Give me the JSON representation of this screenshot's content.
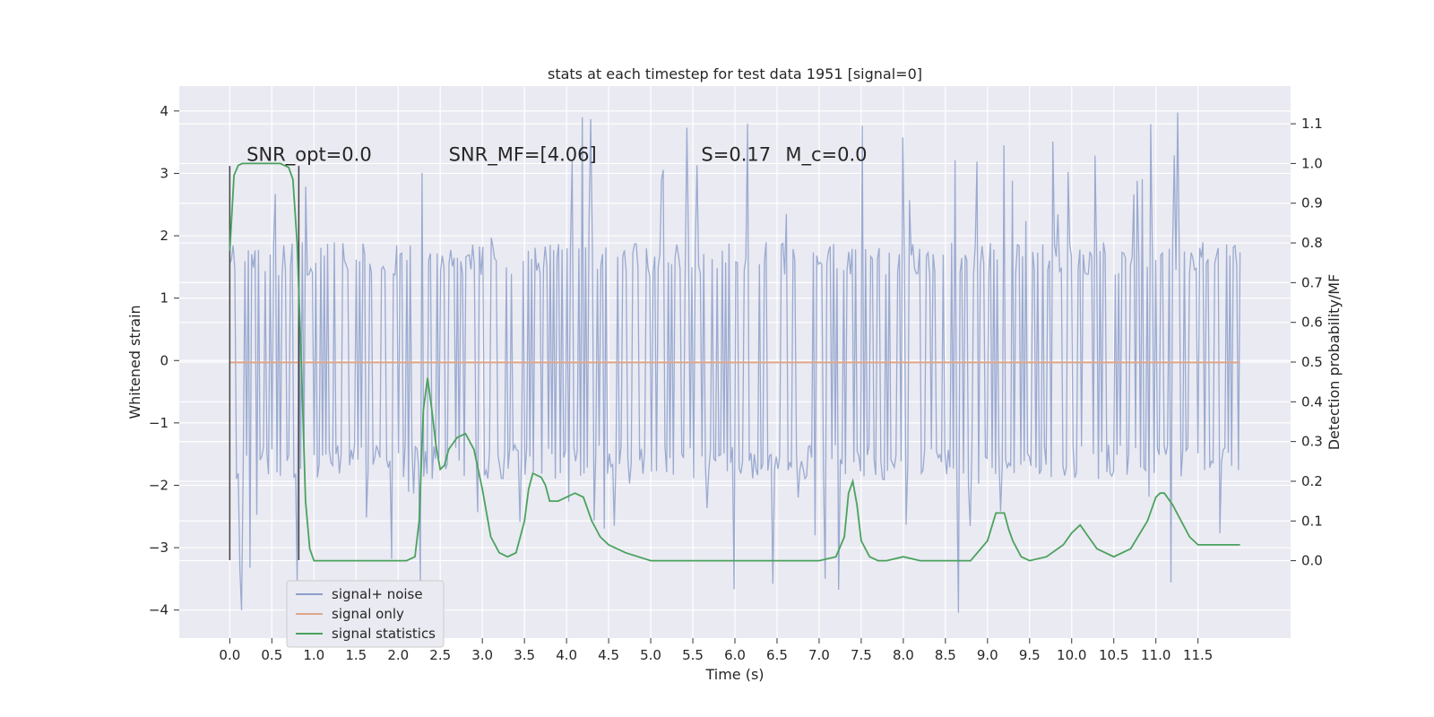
{
  "chart_data": {
    "type": "line",
    "title": "stats at each timestep for test data 1951 [signal=0]",
    "xlabel": "Time (s)",
    "ylabel_left": "Whitened strain",
    "ylabel_right": "Detection probability/MF",
    "xlim": [
      -0.6,
      12.6
    ],
    "ylim_left": [
      -4.45,
      4.4
    ],
    "ylim_right": [
      -0.195,
      1.195
    ],
    "x_ticks": [
      "0.0",
      "0.5",
      "1.0",
      "1.5",
      "2.0",
      "2.5",
      "3.0",
      "3.5",
      "4.0",
      "4.5",
      "5.0",
      "5.5",
      "6.0",
      "6.5",
      "7.0",
      "7.5",
      "8.0",
      "8.5",
      "9.0",
      "9.5",
      "10.0",
      "10.5",
      "11.0",
      "11.5"
    ],
    "y_ticks_left": [
      "−4",
      "−3",
      "−2",
      "−1",
      "0",
      "1",
      "2",
      "3",
      "4"
    ],
    "y_ticks_right": [
      "0.0",
      "0.1",
      "0.2",
      "0.3",
      "0.4",
      "0.5",
      "0.6",
      "0.7",
      "0.8",
      "0.9",
      "1.0",
      "1.1"
    ],
    "grid": true,
    "legend": {
      "position": "lower-left",
      "entries": [
        {
          "name": "signal+ noise",
          "color": "#8c9fca"
        },
        {
          "name": "signal only",
          "color": "#e1a68a"
        },
        {
          "name": "signal statistics",
          "color": "#4aa25d"
        }
      ]
    },
    "annotations": [
      {
        "text": "SNR_opt=0.0",
        "x": 0.2,
        "y": 3.2
      },
      {
        "text": "SNR_MF=[4.06]",
        "x": 2.6,
        "y": 3.2
      },
      {
        "text": "S=0.17",
        "x": 5.6,
        "y": 3.2
      },
      {
        "text": "M_c=0.0",
        "x": 6.6,
        "y": 3.2
      }
    ],
    "markers": [
      {
        "x": 0.0,
        "y0": -3.2,
        "y1": 3.12
      },
      {
        "x": 0.82,
        "y0": -3.2,
        "y1": 3.12
      }
    ],
    "series": [
      {
        "name": "signal+ noise",
        "axis": "left",
        "color": "#8c9fca",
        "x_range": [
          0.0,
          12.0
        ],
        "n_points": 600,
        "envelope_typical": [
          -1.9,
          1.9
        ],
        "spike_range": [
          -4.05,
          4.0
        ]
      },
      {
        "name": "signal only",
        "axis": "left",
        "color": "#e1a68a",
        "x": [
          0.0,
          12.0
        ],
        "y": [
          -0.03,
          -0.03
        ]
      },
      {
        "name": "signal statistics",
        "axis": "right",
        "color": "#4aa25d",
        "x": [
          0.0,
          0.05,
          0.1,
          0.15,
          0.2,
          0.3,
          0.4,
          0.5,
          0.6,
          0.7,
          0.75,
          0.8,
          0.85,
          0.9,
          0.95,
          1.0,
          1.05,
          1.1,
          1.5,
          1.8,
          2.0,
          2.1,
          2.2,
          2.25,
          2.3,
          2.35,
          2.4,
          2.45,
          2.5,
          2.55,
          2.6,
          2.7,
          2.8,
          2.9,
          3.0,
          3.1,
          3.2,
          3.3,
          3.4,
          3.5,
          3.55,
          3.6,
          3.7,
          3.75,
          3.8,
          3.9,
          4.0,
          4.1,
          4.2,
          4.3,
          4.4,
          4.5,
          4.7,
          5.0,
          5.5,
          6.0,
          6.5,
          7.0,
          7.2,
          7.3,
          7.35,
          7.4,
          7.45,
          7.5,
          7.6,
          7.7,
          7.8,
          8.0,
          8.2,
          8.5,
          8.8,
          9.0,
          9.1,
          9.2,
          9.25,
          9.3,
          9.4,
          9.5,
          9.7,
          9.9,
          10.0,
          10.1,
          10.2,
          10.3,
          10.5,
          10.7,
          10.9,
          11.0,
          11.05,
          11.1,
          11.2,
          11.3,
          11.4,
          11.5,
          11.6,
          11.8,
          12.0
        ],
        "y": [
          0.78,
          0.97,
          0.995,
          1.0,
          1.0,
          1.0,
          1.0,
          1.0,
          1.0,
          0.99,
          0.96,
          0.8,
          0.5,
          0.15,
          0.03,
          0.0,
          0.0,
          0.0,
          0.0,
          0.0,
          0.0,
          0.0,
          0.01,
          0.1,
          0.38,
          0.46,
          0.38,
          0.29,
          0.23,
          0.24,
          0.28,
          0.31,
          0.32,
          0.28,
          0.18,
          0.06,
          0.02,
          0.01,
          0.02,
          0.1,
          0.18,
          0.22,
          0.21,
          0.19,
          0.15,
          0.15,
          0.16,
          0.17,
          0.16,
          0.1,
          0.06,
          0.04,
          0.02,
          0.0,
          0.0,
          0.0,
          0.0,
          0.0,
          0.01,
          0.06,
          0.17,
          0.2,
          0.14,
          0.05,
          0.01,
          0.0,
          0.0,
          0.01,
          0.0,
          0.0,
          0.0,
          0.05,
          0.12,
          0.12,
          0.08,
          0.05,
          0.01,
          0.0,
          0.01,
          0.04,
          0.07,
          0.09,
          0.06,
          0.03,
          0.01,
          0.03,
          0.1,
          0.16,
          0.17,
          0.17,
          0.14,
          0.1,
          0.06,
          0.04,
          0.04,
          0.04,
          0.04
        ]
      }
    ]
  }
}
